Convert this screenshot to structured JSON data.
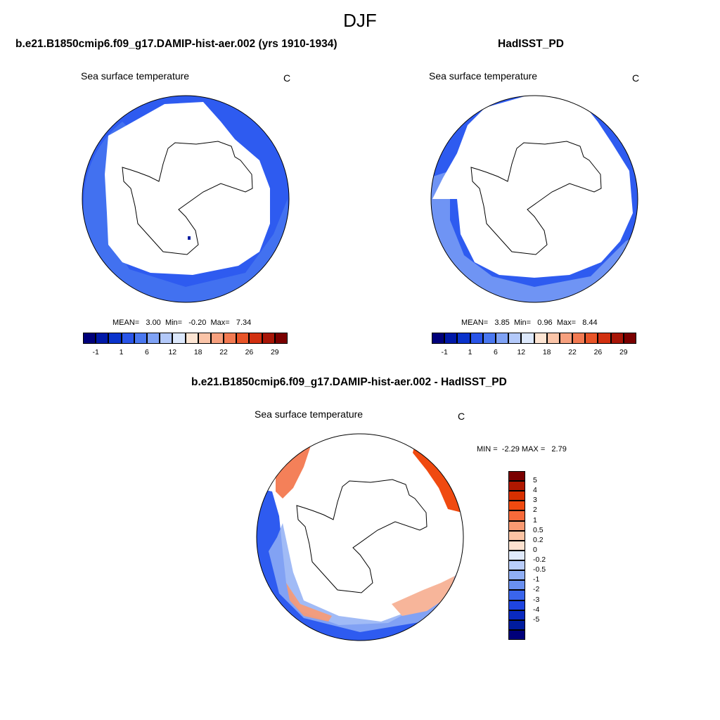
{
  "title": "DJF",
  "colors": {
    "blue_dark": "#0a1fa0",
    "blue_mid": "#2e5bf0",
    "blue_light": "#7fa2f5",
    "red_mid": "#f26a3c",
    "red_light": "#f7b59a",
    "land": "#ffffff",
    "outline": "#000000"
  },
  "panels": [
    {
      "title": "b.e21.B1850cmip6.f09_g17.DAMIP-hist-aer.002 (yrs 1910-1934)",
      "variable": "Sea surface temperature",
      "units": "C",
      "stats": {
        "mean_label": "MEAN=",
        "mean": "3.00",
        "min_label": "Min=",
        "min": "-0.20",
        "max_label": "Max=",
        "max": "7.34"
      }
    },
    {
      "title": "HadISST_PD",
      "variable": "Sea surface temperature",
      "units": "C",
      "stats": {
        "mean_label": "MEAN=",
        "mean": "3.85",
        "min_label": "Min=",
        "min": "0.96",
        "max_label": "Max=",
        "max": "8.44"
      }
    },
    {
      "title": "b.e21.B1850cmip6.f09_g17.DAMIP-hist-aer.002 - HadISST_PD",
      "variable": "Sea surface temperature",
      "units": "C",
      "stats": {
        "min_label": "MIN =",
        "min": "-2.29",
        "max_label": "MAX =",
        "max": "2.79"
      }
    }
  ],
  "colorbar_abs": {
    "colors": [
      "#00007a",
      "#0019a8",
      "#0a33cc",
      "#2a55e8",
      "#4a78f0",
      "#7fa2f5",
      "#b3c9fa",
      "#dce8fc",
      "#fde5d3",
      "#fac4a8",
      "#f6a07e",
      "#f27a52",
      "#e85428",
      "#d23010",
      "#a81608",
      "#7a0000"
    ],
    "labels": [
      "-1",
      "1",
      "6",
      "12",
      "18",
      "22",
      "26",
      "29"
    ]
  },
  "colorbar_diff": {
    "colors": [
      "#7a0000",
      "#b01800",
      "#d83000",
      "#f04a10",
      "#f86a3a",
      "#fa9a72",
      "#fcc4a4",
      "#fde2d0",
      "#e0eafc",
      "#b9cdfa",
      "#90aff5",
      "#6a90f0",
      "#3a65ec",
      "#1f45e0",
      "#0a2ac0",
      "#001c9e",
      "#00007a"
    ],
    "labels": [
      "5",
      "4",
      "3",
      "2",
      "1",
      "0.5",
      "0.2",
      "0",
      "-0.2",
      "-0.5",
      "-1",
      "-2",
      "-3",
      "-4",
      "-5"
    ]
  }
}
